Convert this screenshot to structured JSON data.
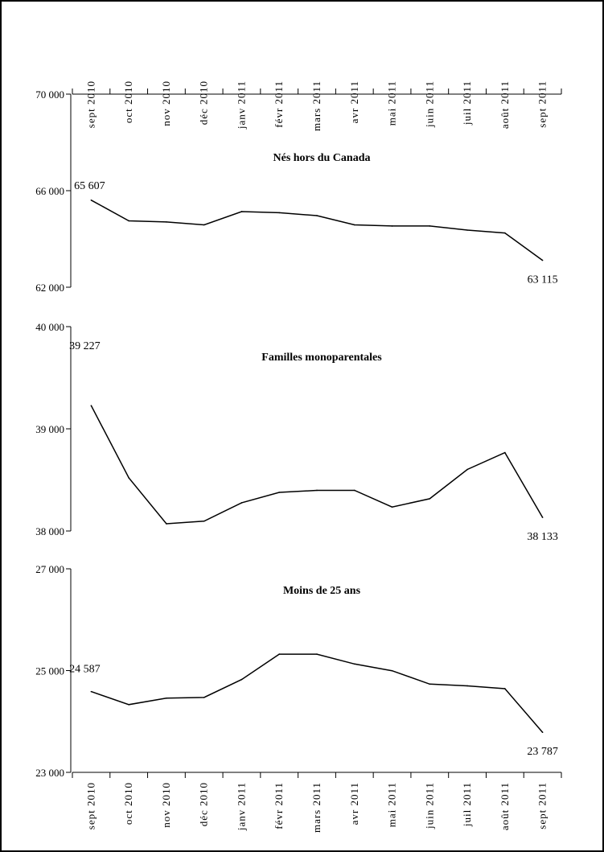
{
  "months": [
    "sept 2010",
    "oct 2010",
    "nov 2010",
    "déc 2010",
    "janv 2011",
    "févr 2011",
    "mars 2011",
    "avr 2011",
    "mai 2011",
    "juin 2011",
    "juil 2011",
    "août 2011",
    "sept 2011"
  ],
  "chart_data": [
    {
      "type": "line",
      "title": "Nés hors du Canada",
      "categories": [
        "sept 2010",
        "oct 2010",
        "nov 2010",
        "déc 2010",
        "janv 2011",
        "févr 2011",
        "mars 2011",
        "avr 2011",
        "mai 2011",
        "juin 2011",
        "juil 2011",
        "août 2011",
        "sept 2011"
      ],
      "values": [
        65607,
        64751,
        64703,
        64583,
        65134,
        65086,
        64966,
        64583,
        64535,
        64535,
        64367,
        64248,
        63115
      ],
      "ylim": [
        62000,
        70000
      ],
      "yticks": [
        "70 000",
        "66 000",
        "62 000"
      ],
      "ytick_values": [
        70000,
        66000,
        62000
      ],
      "first_label": "65 607",
      "last_label": "63 115"
    },
    {
      "type": "line",
      "title": "Familles monoparentales",
      "categories": [
        "sept 2010",
        "oct 2010",
        "nov 2010",
        "déc 2010",
        "janv 2011",
        "févr 2011",
        "mars 2011",
        "avr 2011",
        "mai 2011",
        "juin 2011",
        "juil 2011",
        "août 2011",
        "sept 2011"
      ],
      "values": [
        39227,
        38520,
        38071,
        38096,
        38276,
        38378,
        38398,
        38398,
        38235,
        38316,
        38602,
        38767,
        38133
      ],
      "ylim": [
        38000,
        40000
      ],
      "yticks": [
        "40 000",
        "39 000",
        "38 000"
      ],
      "ytick_values": [
        40000,
        39000,
        38000
      ],
      "first_label": "39 227",
      "last_label": "38 133"
    },
    {
      "type": "line",
      "title": "Moins de 25 ans",
      "categories": [
        "sept 2010",
        "oct 2010",
        "nov 2010",
        "déc 2010",
        "janv 2011",
        "févr 2011",
        "mars 2011",
        "avr 2011",
        "mai 2011",
        "juin 2011",
        "juil 2011",
        "août 2011",
        "sept 2011"
      ],
      "values": [
        24587,
        24331,
        24457,
        24472,
        24825,
        25323,
        25323,
        25129,
        24997,
        24734,
        24700,
        24645,
        23787
      ],
      "ylim": [
        23000,
        27000
      ],
      "yticks": [
        "27 000",
        "25 000",
        "23 000"
      ],
      "ytick_values": [
        27000,
        25000,
        23000
      ],
      "first_label": "24 587",
      "last_label": "23 787"
    }
  ]
}
